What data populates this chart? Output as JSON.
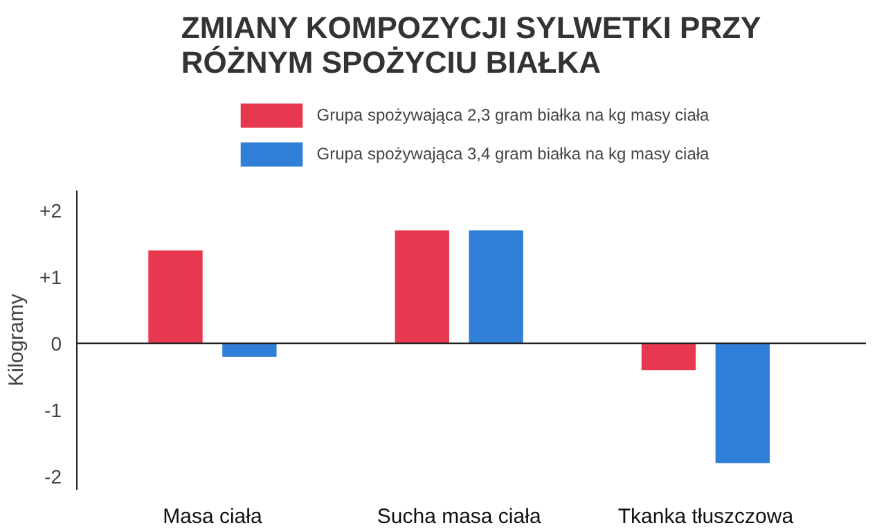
{
  "chart_data": {
    "type": "bar",
    "title": "ZMIANY KOMPOZYCJI SYLWETKI PRZY\nRÓŻNYM SPOŻYCIU BIAŁKA",
    "ylabel": "Kilogramy",
    "categories": [
      "Masa ciała",
      "Sucha masa ciała",
      "Tkanka tłuszczowa"
    ],
    "series": [
      {
        "name": "Grupa spożywająca 2,3 gram białka na kg masy ciała",
        "color": "#e8384f",
        "values": [
          1.4,
          1.7,
          -0.4
        ]
      },
      {
        "name": "Grupa spożywająca 3,4 gram białka na kg masy ciała",
        "color": "#2f7fd8",
        "values": [
          -0.2,
          1.7,
          -1.8
        ]
      }
    ],
    "ylim": [
      -2.2,
      2.3
    ],
    "yticks": [
      {
        "value": 2,
        "label": "+2"
      },
      {
        "value": 1,
        "label": "+1"
      },
      0,
      -1,
      -2
    ],
    "ref_lines": [
      {
        "axis": "y",
        "value": 0,
        "color": "#222222"
      }
    ],
    "grid": false,
    "legend": "top"
  }
}
